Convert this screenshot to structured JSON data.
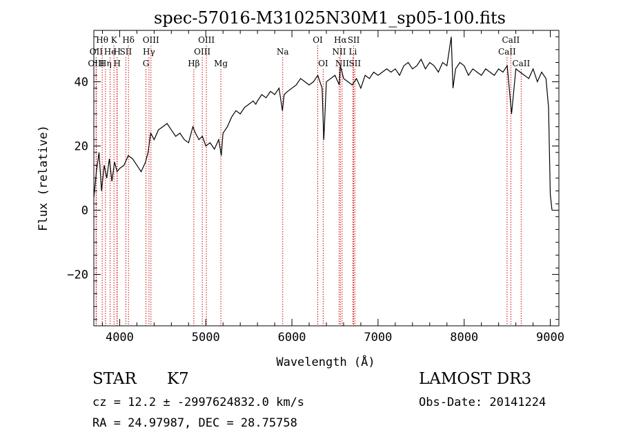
{
  "chart_data": {
    "type": "line",
    "title": "spec-57016-M31025N30M1_sp05-100.fits",
    "xlabel": "Wavelength (Å)",
    "ylabel": "Flux (relative)",
    "xlim": [
      3700,
      9100
    ],
    "ylim": [
      -36,
      56
    ],
    "xticks": [
      4000,
      5000,
      6000,
      7000,
      8000,
      9000
    ],
    "yticks": [
      -20,
      0,
      20,
      40
    ],
    "line_color": "#000000",
    "marker_color": "#cc0000",
    "series": [
      {
        "x": [
          3700,
          3730,
          3760,
          3790,
          3820,
          3850,
          3880,
          3910,
          3940,
          3970,
          4000,
          4050,
          4100,
          4150,
          4200,
          4250,
          4300,
          4330,
          4360,
          4400,
          4450,
          4500,
          4550,
          4600,
          4650,
          4700,
          4750,
          4800,
          4850,
          4880,
          4920,
          4960,
          5000,
          5050,
          5100,
          5150,
          5180,
          5200,
          5250,
          5300,
          5350,
          5400,
          5450,
          5500,
          5550,
          5580,
          5600,
          5650,
          5700,
          5750,
          5800,
          5850,
          5890,
          5910,
          5950,
          6000,
          6050,
          6100,
          6150,
          6200,
          6250,
          6300,
          6350,
          6370,
          6400,
          6450,
          6500,
          6550,
          6563,
          6600,
          6650,
          6700,
          6750,
          6800,
          6850,
          6900,
          6950,
          7000,
          7050,
          7100,
          7150,
          7200,
          7250,
          7300,
          7350,
          7400,
          7450,
          7500,
          7550,
          7600,
          7650,
          7700,
          7750,
          7800,
          7850,
          7870,
          7900,
          7950,
          8000,
          8050,
          8100,
          8150,
          8200,
          8250,
          8300,
          8350,
          8400,
          8450,
          8500,
          8550,
          8600,
          8650,
          8700,
          8750,
          8800,
          8850,
          8900,
          8950,
          8980,
          9000,
          9020
        ],
        "y": [
          4,
          12,
          18,
          6,
          14,
          10,
          16,
          9,
          15,
          12,
          13,
          14,
          17,
          16,
          14,
          12,
          15,
          18,
          24,
          22,
          25,
          26,
          27,
          25,
          23,
          24,
          22,
          21,
          26,
          24,
          22,
          23,
          20,
          21,
          19,
          22,
          17,
          24,
          26,
          29,
          31,
          30,
          32,
          33,
          34,
          33,
          34,
          36,
          35,
          37,
          36,
          38,
          31,
          36,
          37,
          38,
          39,
          41,
          40,
          39,
          40,
          42,
          38,
          22,
          40,
          41,
          42,
          39,
          45,
          41,
          40,
          39,
          41,
          38,
          42,
          41,
          43,
          42,
          43,
          44,
          43,
          44,
          42,
          45,
          46,
          44,
          45,
          47,
          44,
          46,
          45,
          43,
          46,
          45,
          54,
          38,
          44,
          46,
          45,
          42,
          44,
          43,
          42,
          44,
          43,
          42,
          44,
          43,
          45,
          30,
          44,
          43,
          42,
          41,
          44,
          40,
          43,
          41,
          32,
          5,
          0
        ]
      }
    ],
    "lines": [
      {
        "name": "Hθ",
        "x": 3797,
        "row": 1
      },
      {
        "name": "K",
        "x": 3934,
        "row": 1
      },
      {
        "name": "Hδ",
        "x": 4102,
        "row": 1
      },
      {
        "name": "OIII",
        "x": 4363,
        "row": 1
      },
      {
        "name": "OIII",
        "x": 5007,
        "row": 1
      },
      {
        "name": "OI",
        "x": 6300,
        "row": 1
      },
      {
        "name": "Hα",
        "x": 6563,
        "row": 1
      },
      {
        "name": "SII",
        "x": 6717,
        "row": 1
      },
      {
        "name": "CaII",
        "x": 8542,
        "row": 1
      },
      {
        "name": "OII",
        "x": 3727,
        "row": 2
      },
      {
        "name": "He",
        "x": 3889,
        "row": 2
      },
      {
        "name": "H",
        "x": 3970,
        "row": 2
      },
      {
        "name": "SII",
        "x": 4072,
        "row": 2
      },
      {
        "name": "Hγ",
        "x": 4340,
        "row": 2
      },
      {
        "name": "OIII",
        "x": 4959,
        "row": 2
      },
      {
        "name": "Na",
        "x": 5893,
        "row": 2
      },
      {
        "name": "NII",
        "x": 6548,
        "row": 2
      },
      {
        "name": "Li",
        "x": 6708,
        "row": 2
      },
      {
        "name": "CaII",
        "x": 8498,
        "row": 2
      },
      {
        "name": "OIII",
        "x": 3727,
        "row": 3
      },
      {
        "name": "Hη",
        "x": 3835,
        "row": 3
      },
      {
        "name": "H",
        "x": 3970,
        "row": 3
      },
      {
        "name": "G",
        "x": 4305,
        "row": 3
      },
      {
        "name": "Hβ",
        "x": 4861,
        "row": 3
      },
      {
        "name": "Mg",
        "x": 5175,
        "row": 3
      },
      {
        "name": "OI",
        "x": 6363,
        "row": 3
      },
      {
        "name": "NII",
        "x": 6583,
        "row": 3
      },
      {
        "name": "SII",
        "x": 6731,
        "row": 3
      },
      {
        "name": "CaII",
        "x": 8662,
        "row": 3
      }
    ]
  },
  "info": {
    "object_class": "STAR",
    "subclass": "K7",
    "survey": "LAMOST DR3",
    "cz": "cz = 12.2 ± -2997624832.0 km/s",
    "obs_date": "Obs-Date: 20141224",
    "radec": "RA =  24.97987, DEC =  28.75758"
  }
}
